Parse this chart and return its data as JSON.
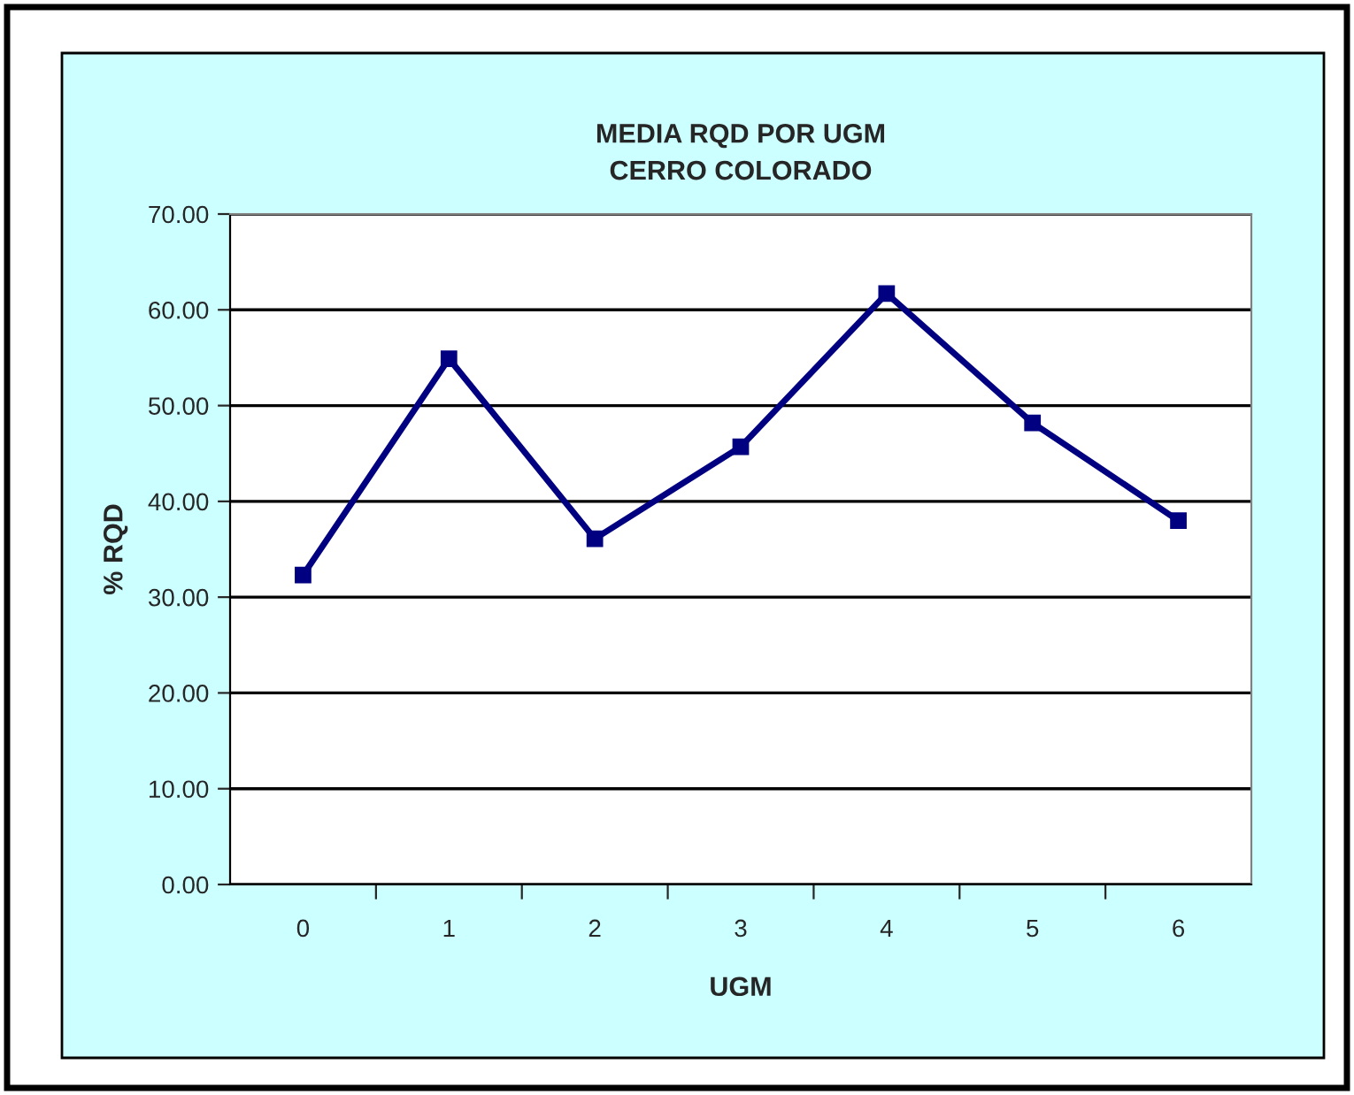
{
  "chart_data": {
    "type": "line",
    "title": "MEDIA RQD POR UGM\nCERRO COLORADO",
    "xlabel": "UGM",
    "ylabel": "% RQD",
    "categories": [
      "0",
      "1",
      "2",
      "3",
      "4",
      "5",
      "6"
    ],
    "series": [
      {
        "color": "#000080",
        "values": [
          32.3,
          54.9,
          36.1,
          45.7,
          61.7,
          48.2,
          38.0
        ]
      }
    ],
    "ylim": [
      0,
      70
    ],
    "yticks": [
      {
        "value": 0,
        "label": "0.00"
      },
      {
        "value": 10,
        "label": "10.00"
      },
      {
        "value": 20,
        "label": "20.00"
      },
      {
        "value": 30,
        "label": "30.00"
      },
      {
        "value": 40,
        "label": "40.00"
      },
      {
        "value": 50,
        "label": "50.00"
      },
      {
        "value": 60,
        "label": "60.00"
      },
      {
        "value": 70,
        "label": "70.00"
      }
    ],
    "grid": "y",
    "marker": "square",
    "line_style": "solid"
  }
}
